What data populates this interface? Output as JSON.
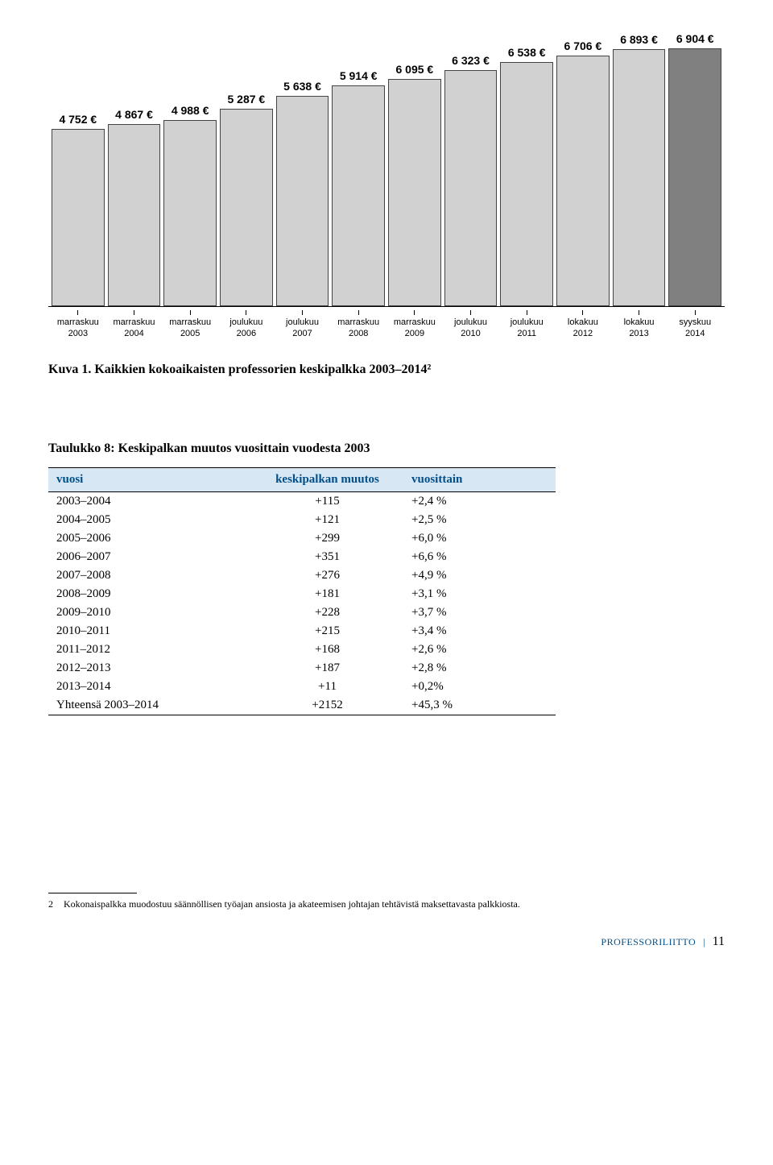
{
  "chart": {
    "max_value": 6904,
    "bar_color": "#d1d1d1",
    "highlight_color": "#808080",
    "label_fontsize": 14,
    "xaxis_fontsize": 11,
    "bars": [
      {
        "label": "4 752 €",
        "value": 4752,
        "month": "marraskuu",
        "year": "2003",
        "highlight": false
      },
      {
        "label": "4 867 €",
        "value": 4867,
        "month": "marraskuu",
        "year": "2004",
        "highlight": false
      },
      {
        "label": "4 988 €",
        "value": 4988,
        "month": "marraskuu",
        "year": "2005",
        "highlight": false
      },
      {
        "label": "5 287 €",
        "value": 5287,
        "month": "joulukuu",
        "year": "2006",
        "highlight": false
      },
      {
        "label": "5 638 €",
        "value": 5638,
        "month": "joulukuu",
        "year": "2007",
        "highlight": false
      },
      {
        "label": "5 914 €",
        "value": 5914,
        "month": "marraskuu",
        "year": "2008",
        "highlight": false
      },
      {
        "label": "6 095 €",
        "value": 6095,
        "month": "marraskuu",
        "year": "2009",
        "highlight": false
      },
      {
        "label": "6 323 €",
        "value": 6323,
        "month": "joulukuu",
        "year": "2010",
        "highlight": false
      },
      {
        "label": "6 538 €",
        "value": 6538,
        "month": "joulukuu",
        "year": "2011",
        "highlight": false
      },
      {
        "label": "6 706 €",
        "value": 6706,
        "month": "lokakuu",
        "year": "2012",
        "highlight": false
      },
      {
        "label": "6 893 €",
        "value": 6893,
        "month": "lokakuu",
        "year": "2013",
        "highlight": false
      },
      {
        "label": "6 904 €",
        "value": 6904,
        "month": "syyskuu",
        "year": "2014",
        "highlight": true
      }
    ]
  },
  "caption": "Kuva 1. Kaikkien kokoaikaisten professorien keskipalkka 2003–2014²",
  "table": {
    "title": "Taulukko 8: Keskipalkan muutos vuosittain vuodesta 2003",
    "header_bg": "#d7e7f3",
    "header_color": "#004e8a",
    "headers": {
      "year": "vuosi",
      "change": "keskipalkan muutos",
      "pct": "vuosittain"
    },
    "rows": [
      {
        "year": "2003–2004",
        "change": "+115",
        "pct": "+2,4 %"
      },
      {
        "year": "2004–2005",
        "change": "+121",
        "pct": "+2,5 %"
      },
      {
        "year": "2005–2006",
        "change": "+299",
        "pct": "+6,0 %"
      },
      {
        "year": "2006–2007",
        "change": "+351",
        "pct": "+6,6 %"
      },
      {
        "year": "2007–2008",
        "change": "+276",
        "pct": "+4,9 %"
      },
      {
        "year": "2008–2009",
        "change": "+181",
        "pct": "+3,1 %"
      },
      {
        "year": "2009–2010",
        "change": "+228",
        "pct": "+3,7 %"
      },
      {
        "year": "2010–2011",
        "change": "+215",
        "pct": "+3,4 %"
      },
      {
        "year": "2011–2012",
        "change": "+168",
        "pct": "+2,6 %"
      },
      {
        "year": "2012–2013",
        "change": "+187",
        "pct": "+2,8 %"
      },
      {
        "year": "2013–2014",
        "change": "+11",
        "pct": "+0,2%"
      },
      {
        "year": "Yhteensä 2003–2014",
        "change": "+2152",
        "pct": "+45,3 %"
      }
    ]
  },
  "footnote": {
    "num": "2",
    "text": "Kokonaispalkka muodostuu säännöllisen työajan ansiosta ja akateemisen johtajan tehtävistä maksettavasta palkkiosta."
  },
  "footer": {
    "brand": "PROFESSORILIITTO",
    "page": "11"
  }
}
